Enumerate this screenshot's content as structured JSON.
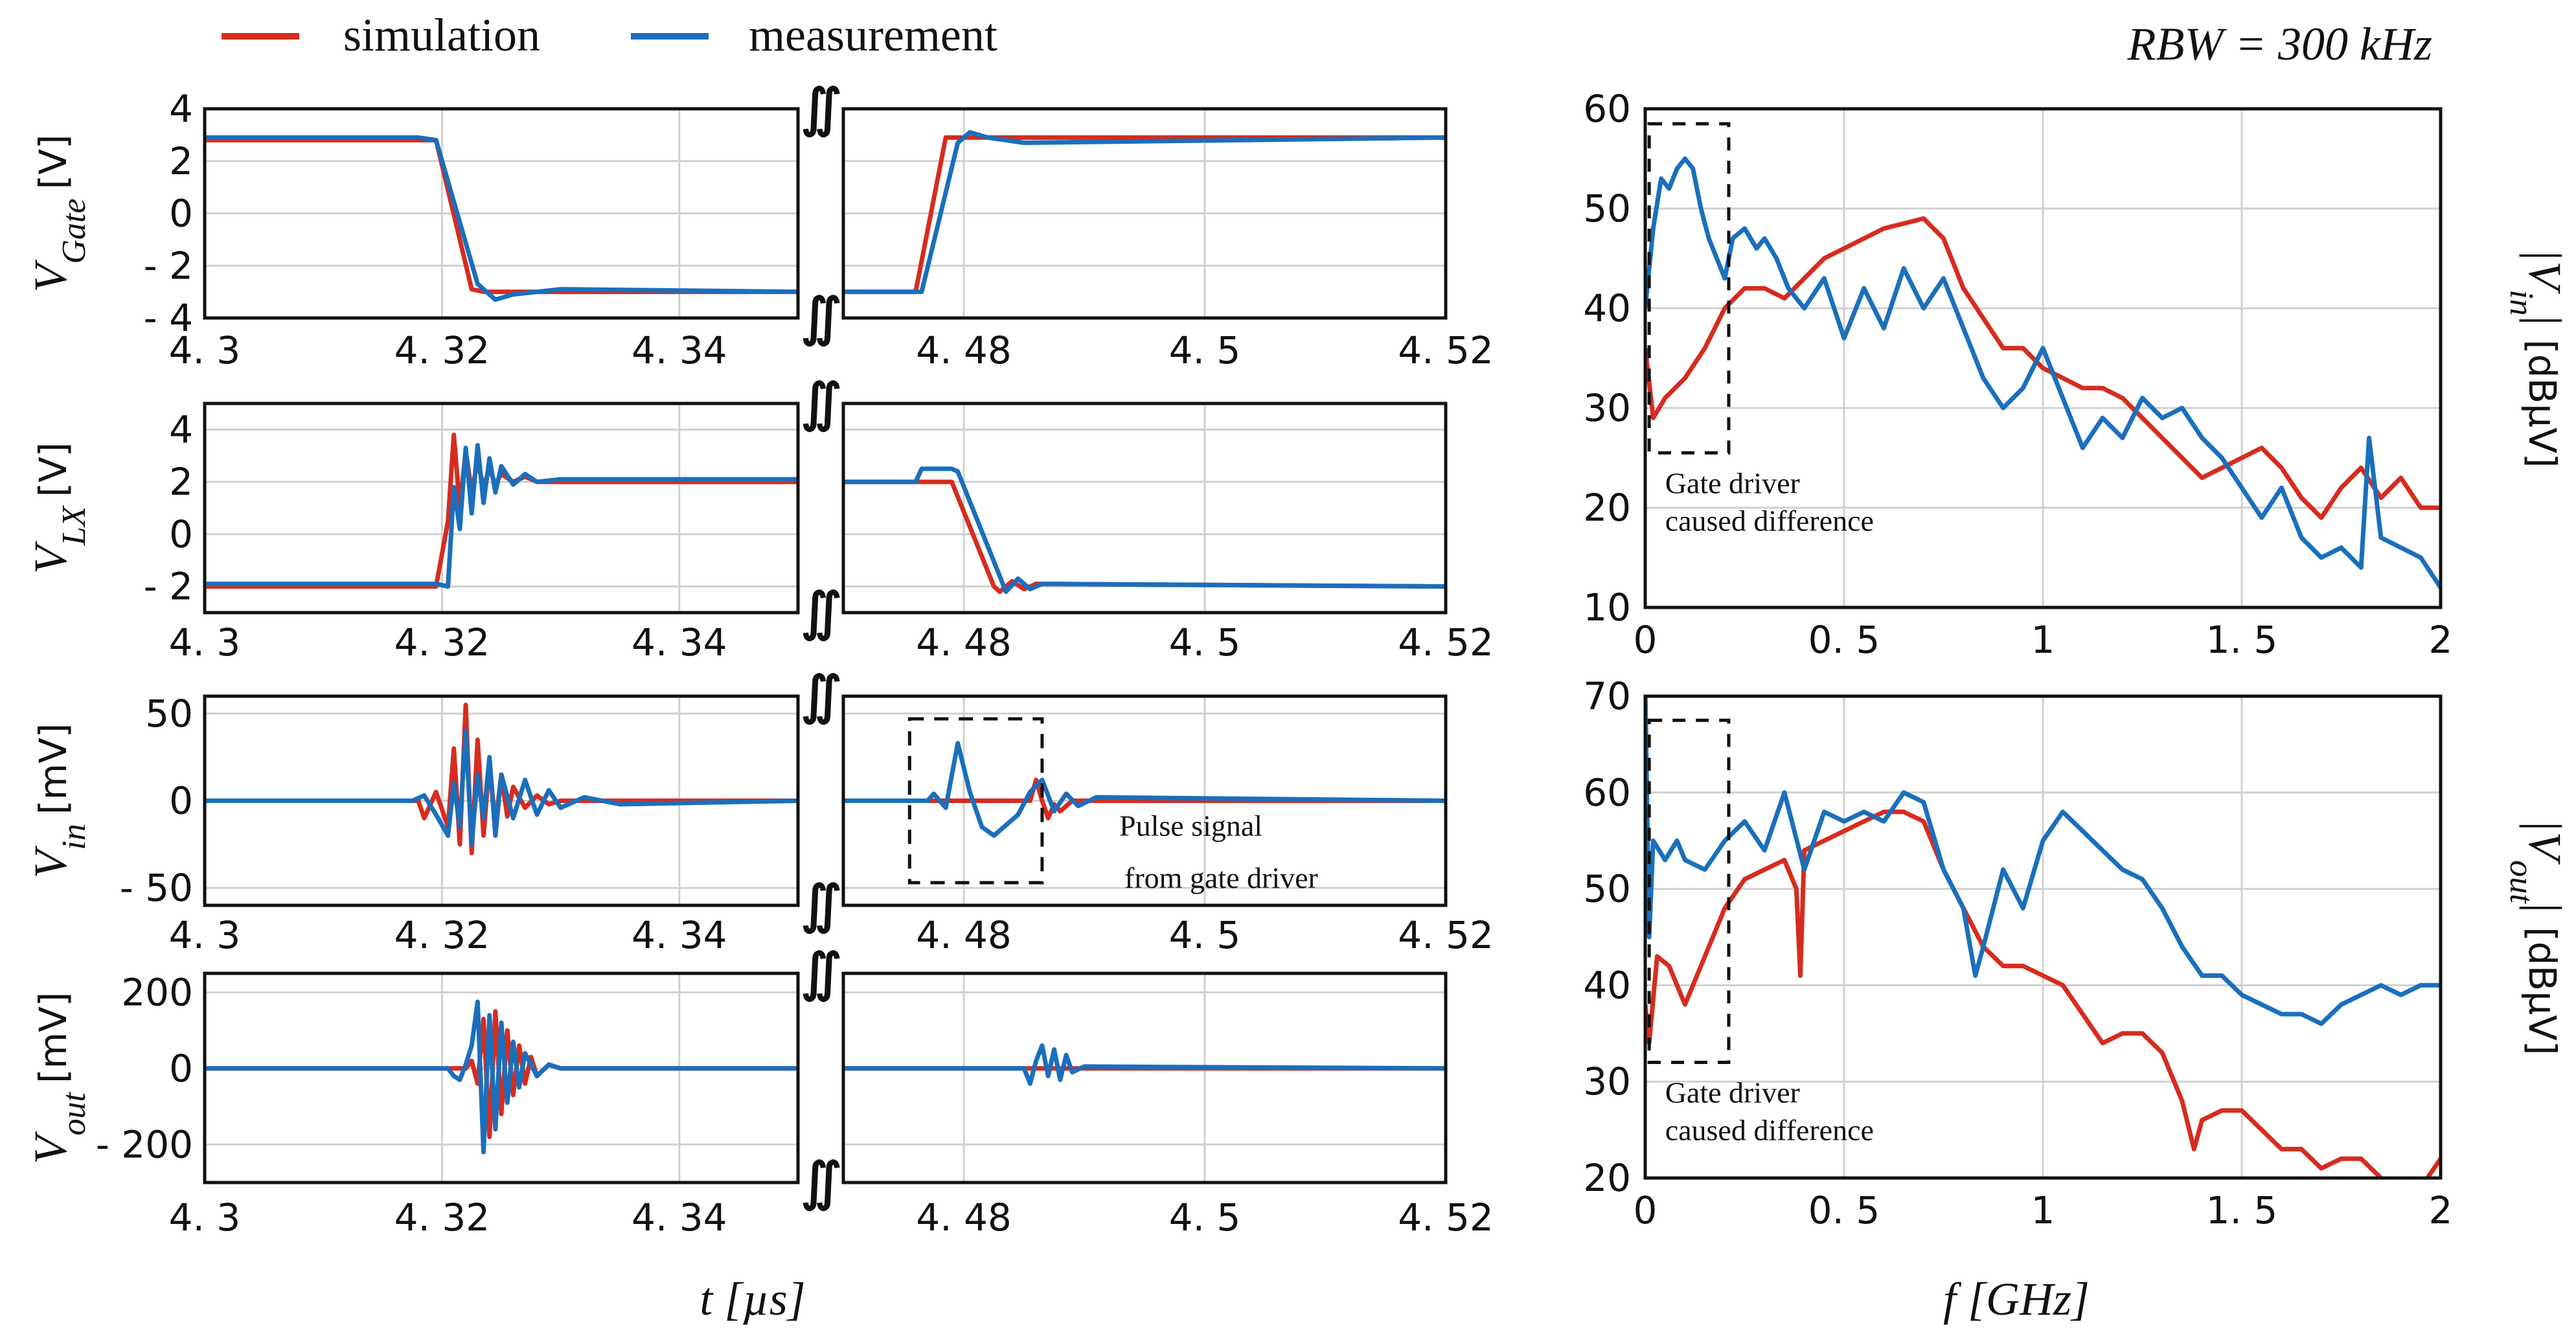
{
  "legend": [
    {
      "name": "simulation",
      "color": "#d62c1f"
    },
    {
      "name": "measurement",
      "color": "#1a6fbd"
    }
  ],
  "rbw_label": "RBW = 300 kHz",
  "x_label_time": "t [µs]",
  "x_label_freq": "f [GHz]",
  "chart_data": [
    {
      "type": "line",
      "id": "vgate",
      "ylabel": "V_Gate [V]",
      "ylim": [
        -4,
        4
      ],
      "yticks": [
        4,
        2,
        0,
        -2,
        -4
      ],
      "ytick_labels": [
        "4",
        "2",
        "0",
        "- 2",
        "- 4"
      ],
      "xlim_left": [
        4.3,
        4.35
      ],
      "xlim_right": [
        4.47,
        4.52
      ],
      "xtick_labels": [
        "4. 3",
        "4. 32",
        "4. 34",
        "4. 48",
        "4. 5",
        "4. 52"
      ],
      "series": [
        {
          "name": "simulation",
          "left": {
            "x": [
              4.3,
              4.3195,
              4.3225,
              4.3235,
              4.35
            ],
            "y": [
              2.8,
              2.8,
              -2.9,
              -3.0,
              -3.0
            ]
          },
          "right": {
            "x": [
              4.47,
              4.476,
              4.4785,
              4.4795,
              4.52
            ],
            "y": [
              -3.0,
              -3.0,
              2.9,
              2.9,
              2.9
            ]
          }
        },
        {
          "name": "measurement",
          "left": {
            "x": [
              4.3,
              4.318,
              4.3195,
              4.323,
              4.3245,
              4.326,
              4.33,
              4.35
            ],
            "y": [
              2.9,
              2.9,
              2.8,
              -2.7,
              -3.3,
              -3.1,
              -2.9,
              -3.0
            ]
          },
          "right": {
            "x": [
              4.47,
              4.4765,
              4.4795,
              4.4805,
              4.482,
              4.485,
              4.52
            ],
            "y": [
              -3.0,
              -3.0,
              2.7,
              3.1,
              2.9,
              2.7,
              2.9
            ]
          }
        }
      ]
    },
    {
      "type": "line",
      "id": "vlx",
      "ylabel": "V_LX [V]",
      "ylim": [
        -3,
        5
      ],
      "yticks": [
        4,
        2,
        0,
        -2
      ],
      "ytick_labels": [
        "4",
        "2",
        "0",
        "- 2"
      ],
      "xlim_left": [
        4.3,
        4.35
      ],
      "xlim_right": [
        4.47,
        4.52
      ],
      "xtick_labels": [
        "4. 3",
        "4. 32",
        "4. 34",
        "4. 48",
        "4. 5",
        "4. 52"
      ],
      "series": [
        {
          "name": "simulation",
          "left": {
            "x": [
              4.3,
              4.3195,
              4.3205,
              4.321,
              4.3215,
              4.322,
              4.3225,
              4.323,
              4.3235,
              4.324,
              4.3245,
              4.325,
              4.326,
              4.327,
              4.328,
              4.35
            ],
            "y": [
              -2.0,
              -2.0,
              0.5,
              3.8,
              1.0,
              3.2,
              1.6,
              2.8,
              1.8,
              2.5,
              1.9,
              2.3,
              2.0,
              2.2,
              2.0,
              2.0
            ]
          },
          "right": {
            "x": [
              4.47,
              4.479,
              4.4825,
              4.483,
              4.484,
              4.485,
              4.486,
              4.52
            ],
            "y": [
              2.0,
              2.0,
              -2.0,
              -2.2,
              -1.8,
              -2.1,
              -1.9,
              -2.0
            ]
          }
        },
        {
          "name": "measurement",
          "left": {
            "x": [
              4.3,
              4.3195,
              4.3205,
              4.321,
              4.3215,
              4.322,
              4.3225,
              4.323,
              4.3235,
              4.324,
              4.3245,
              4.325,
              4.326,
              4.327,
              4.328,
              4.33,
              4.35
            ],
            "y": [
              -1.9,
              -1.9,
              -2.0,
              1.8,
              0.2,
              3.3,
              0.8,
              3.4,
              1.2,
              2.9,
              1.6,
              2.6,
              1.9,
              2.3,
              2.0,
              2.1,
              2.1
            ]
          },
          "right": {
            "x": [
              4.47,
              4.476,
              4.4765,
              4.479,
              4.4795,
              4.4835,
              4.4845,
              4.4855,
              4.4865,
              4.52
            ],
            "y": [
              2.0,
              2.0,
              2.5,
              2.5,
              2.4,
              -2.2,
              -1.7,
              -2.1,
              -1.9,
              -2.0
            ]
          }
        }
      ]
    },
    {
      "type": "line",
      "id": "vin",
      "ylabel": "V_in [mV]",
      "ylim": [
        -60,
        60
      ],
      "yticks": [
        50,
        0,
        -50
      ],
      "ytick_labels": [
        "50",
        "0",
        "- 50"
      ],
      "xlim_left": [
        4.3,
        4.35
      ],
      "xlim_right": [
        4.47,
        4.52
      ],
      "xtick_labels": [
        "4. 3",
        "4. 32",
        "4. 34",
        "4. 48",
        "4. 5",
        "4. 52"
      ],
      "series": [
        {
          "name": "simulation",
          "left": {
            "x": [
              4.3,
              4.318,
              4.3185,
              4.3195,
              4.3205,
              4.321,
              4.3215,
              4.322,
              4.3225,
              4.323,
              4.3235,
              4.324,
              4.3245,
              4.325,
              4.3255,
              4.326,
              4.327,
              4.328,
              4.329,
              4.33,
              4.35
            ],
            "y": [
              0,
              0,
              -10,
              5,
              -15,
              30,
              -25,
              55,
              -30,
              35,
              -20,
              22,
              -14,
              15,
              -9,
              8,
              -4,
              3,
              -2,
              0,
              0
            ]
          },
          "right": {
            "x": [
              4.47,
              4.4855,
              4.486,
              4.4865,
              4.487,
              4.4875,
              4.488,
              4.489,
              4.52
            ],
            "y": [
              0,
              0,
              12,
              0,
              -10,
              -2,
              -6,
              0,
              0
            ]
          }
        },
        {
          "name": "measurement",
          "left": {
            "x": [
              4.3,
              4.3175,
              4.3185,
              4.3195,
              4.3205,
              4.321,
              4.3215,
              4.322,
              4.3225,
              4.323,
              4.3235,
              4.324,
              4.3245,
              4.325,
              4.326,
              4.327,
              4.328,
              4.329,
              4.33,
              4.332,
              4.335,
              4.35
            ],
            "y": [
              0,
              0,
              3,
              -8,
              -20,
              10,
              -15,
              40,
              -25,
              15,
              -10,
              25,
              -20,
              15,
              -10,
              12,
              -8,
              6,
              -4,
              2,
              -2,
              0
            ]
          },
          "right": {
            "x": [
              4.47,
              4.477,
              4.4775,
              4.4785,
              4.4795,
              4.4805,
              4.4815,
              4.4825,
              4.4845,
              4.4855,
              4.4865,
              4.4875,
              4.4885,
              4.4895,
              4.491,
              4.52
            ],
            "y": [
              0,
              0,
              4,
              -4,
              33,
              5,
              -15,
              -20,
              -8,
              5,
              12,
              -6,
              4,
              -3,
              2,
              0
            ]
          }
        }
      ]
    },
    {
      "type": "line",
      "id": "vout",
      "ylabel": "V_out [mV]",
      "ylim": [
        -300,
        250
      ],
      "yticks": [
        200,
        0,
        -200
      ],
      "ytick_labels": [
        "200",
        "0",
        "- 200"
      ],
      "xlim_left": [
        4.3,
        4.35
      ],
      "xlim_right": [
        4.47,
        4.52
      ],
      "xtick_labels": [
        "4. 3",
        "4. 32",
        "4. 34",
        "4. 48",
        "4. 5",
        "4. 52"
      ],
      "series": [
        {
          "name": "simulation",
          "left": {
            "x": [
              4.3,
              4.322,
              4.3225,
              4.323,
              4.3235,
              4.324,
              4.3245,
              4.325,
              4.3255,
              4.326,
              4.3265,
              4.327,
              4.3275,
              4.328,
              4.329,
              4.33,
              4.35
            ],
            "y": [
              0,
              0,
              20,
              -40,
              130,
              -180,
              150,
              -120,
              100,
              -70,
              60,
              -40,
              30,
              -20,
              10,
              0,
              0
            ]
          },
          "right": {
            "x": [
              4.47,
              4.52
            ],
            "y": [
              0,
              0
            ]
          }
        },
        {
          "name": "measurement",
          "left": {
            "x": [
              4.3,
              4.3205,
              4.321,
              4.3215,
              4.322,
              4.3225,
              4.323,
              4.3235,
              4.324,
              4.3245,
              4.325,
              4.3255,
              4.326,
              4.3265,
              4.327,
              4.328,
              4.329,
              4.33,
              4.35
            ],
            "y": [
              0,
              0,
              -20,
              -30,
              10,
              60,
              175,
              -220,
              140,
              -160,
              120,
              -90,
              70,
              -50,
              40,
              -20,
              10,
              0,
              0
            ]
          },
          "right": {
            "x": [
              4.47,
              4.485,
              4.4855,
              4.486,
              4.4865,
              4.487,
              4.4875,
              4.488,
              4.4885,
              4.489,
              4.49,
              4.52
            ],
            "y": [
              0,
              0,
              -40,
              20,
              60,
              -20,
              50,
              -30,
              35,
              -10,
              5,
              0
            ]
          }
        }
      ]
    },
    {
      "type": "line",
      "id": "spec_vin",
      "ylabel": "|V_in| [dBµV]",
      "xlim": [
        0,
        2
      ],
      "ylim": [
        10,
        60
      ],
      "yticks": [
        60,
        50,
        40,
        30,
        20,
        10
      ],
      "xticks": [
        0,
        0.5,
        1,
        1.5,
        2
      ],
      "xtick_labels": [
        "0",
        "0. 5",
        "1",
        "1. 5",
        "2"
      ],
      "annotation": "Gate driver caused difference",
      "series": [
        {
          "name": "simulation",
          "x": [
            0,
            0.02,
            0.05,
            0.1,
            0.15,
            0.2,
            0.25,
            0.3,
            0.35,
            0.4,
            0.45,
            0.5,
            0.55,
            0.6,
            0.65,
            0.7,
            0.75,
            0.8,
            0.85,
            0.9,
            0.95,
            1.0,
            1.05,
            1.1,
            1.15,
            1.2,
            1.25,
            1.3,
            1.35,
            1.4,
            1.45,
            1.5,
            1.55,
            1.6,
            1.65,
            1.7,
            1.75,
            1.8,
            1.85,
            1.9,
            1.95,
            2.0
          ],
          "y": [
            36,
            29,
            31,
            33,
            36,
            40,
            42,
            42,
            41,
            43,
            45,
            46,
            47,
            48,
            48.5,
            49,
            47,
            42,
            39,
            36,
            36,
            34,
            33,
            32,
            32,
            31,
            29,
            27,
            25,
            23,
            24,
            25,
            26,
            24,
            21,
            19,
            22,
            24,
            21,
            23,
            20,
            20
          ]
        },
        {
          "name": "measurement",
          "x": [
            0,
            0.02,
            0.04,
            0.06,
            0.08,
            0.1,
            0.12,
            0.14,
            0.16,
            0.18,
            0.2,
            0.22,
            0.25,
            0.28,
            0.3,
            0.33,
            0.36,
            0.4,
            0.45,
            0.5,
            0.55,
            0.6,
            0.65,
            0.7,
            0.75,
            0.8,
            0.85,
            0.9,
            0.95,
            1.0,
            1.05,
            1.1,
            1.15,
            1.2,
            1.25,
            1.3,
            1.35,
            1.4,
            1.45,
            1.5,
            1.55,
            1.6,
            1.65,
            1.7,
            1.75,
            1.8,
            1.82,
            1.85,
            1.9,
            1.95,
            2.0
          ],
          "y": [
            40,
            48,
            53,
            52,
            54,
            55,
            54,
            50,
            47,
            45,
            43,
            47,
            48,
            46,
            47,
            45,
            42,
            40,
            43,
            37,
            42,
            38,
            44,
            40,
            43,
            38,
            33,
            30,
            32,
            36,
            31,
            26,
            29,
            27,
            31,
            29,
            30,
            27,
            25,
            22,
            19,
            22,
            17,
            15,
            16,
            14,
            27,
            17,
            16,
            15,
            12
          ]
        }
      ]
    },
    {
      "type": "line",
      "id": "spec_vout",
      "ylabel": "|V_out| [dBµV]",
      "xlim": [
        0,
        2
      ],
      "ylim": [
        20,
        70
      ],
      "yticks": [
        70,
        60,
        50,
        40,
        30,
        20
      ],
      "xticks": [
        0,
        0.5,
        1,
        1.5,
        2
      ],
      "xtick_labels": [
        "0",
        "0. 5",
        "1",
        "1. 5",
        "2"
      ],
      "annotation": "Gate driver caused difference",
      "series": [
        {
          "name": "simulation",
          "x": [
            0,
            0.01,
            0.03,
            0.06,
            0.1,
            0.15,
            0.2,
            0.25,
            0.3,
            0.35,
            0.38,
            0.39,
            0.4,
            0.45,
            0.5,
            0.55,
            0.6,
            0.65,
            0.7,
            0.75,
            0.8,
            0.85,
            0.9,
            0.95,
            1.0,
            1.05,
            1.1,
            1.15,
            1.2,
            1.25,
            1.3,
            1.35,
            1.38,
            1.4,
            1.45,
            1.5,
            1.55,
            1.6,
            1.65,
            1.7,
            1.75,
            1.8,
            1.85,
            1.9,
            1.95,
            2.0
          ],
          "y": [
            38,
            34,
            43,
            42,
            38,
            43,
            48,
            51,
            52,
            53,
            50,
            41,
            54,
            55,
            56,
            57,
            58,
            58,
            57,
            52,
            48,
            44,
            42,
            42,
            41,
            40,
            37,
            34,
            35,
            35,
            33,
            28,
            23,
            26,
            27,
            27,
            25,
            23,
            23,
            21,
            22,
            22,
            20,
            18,
            19,
            22
          ]
        },
        {
          "name": "measurement",
          "x": [
            0,
            0.01,
            0.02,
            0.05,
            0.08,
            0.1,
            0.15,
            0.2,
            0.25,
            0.3,
            0.35,
            0.4,
            0.45,
            0.5,
            0.55,
            0.6,
            0.65,
            0.7,
            0.75,
            0.8,
            0.83,
            0.85,
            0.9,
            0.95,
            1.0,
            1.05,
            1.1,
            1.15,
            1.2,
            1.25,
            1.3,
            1.35,
            1.4,
            1.45,
            1.5,
            1.55,
            1.6,
            1.65,
            1.7,
            1.75,
            1.8,
            1.85,
            1.9,
            1.95,
            2.0
          ],
          "y": [
            71,
            45,
            55,
            53,
            55,
            53,
            52,
            55,
            57,
            54,
            60,
            52,
            58,
            57,
            58,
            57,
            60,
            59,
            52,
            48,
            41,
            44,
            52,
            48,
            55,
            58,
            56,
            54,
            52,
            51,
            48,
            44,
            41,
            41,
            39,
            38,
            37,
            37,
            36,
            38,
            39,
            40,
            39,
            40,
            40
          ]
        }
      ]
    }
  ]
}
